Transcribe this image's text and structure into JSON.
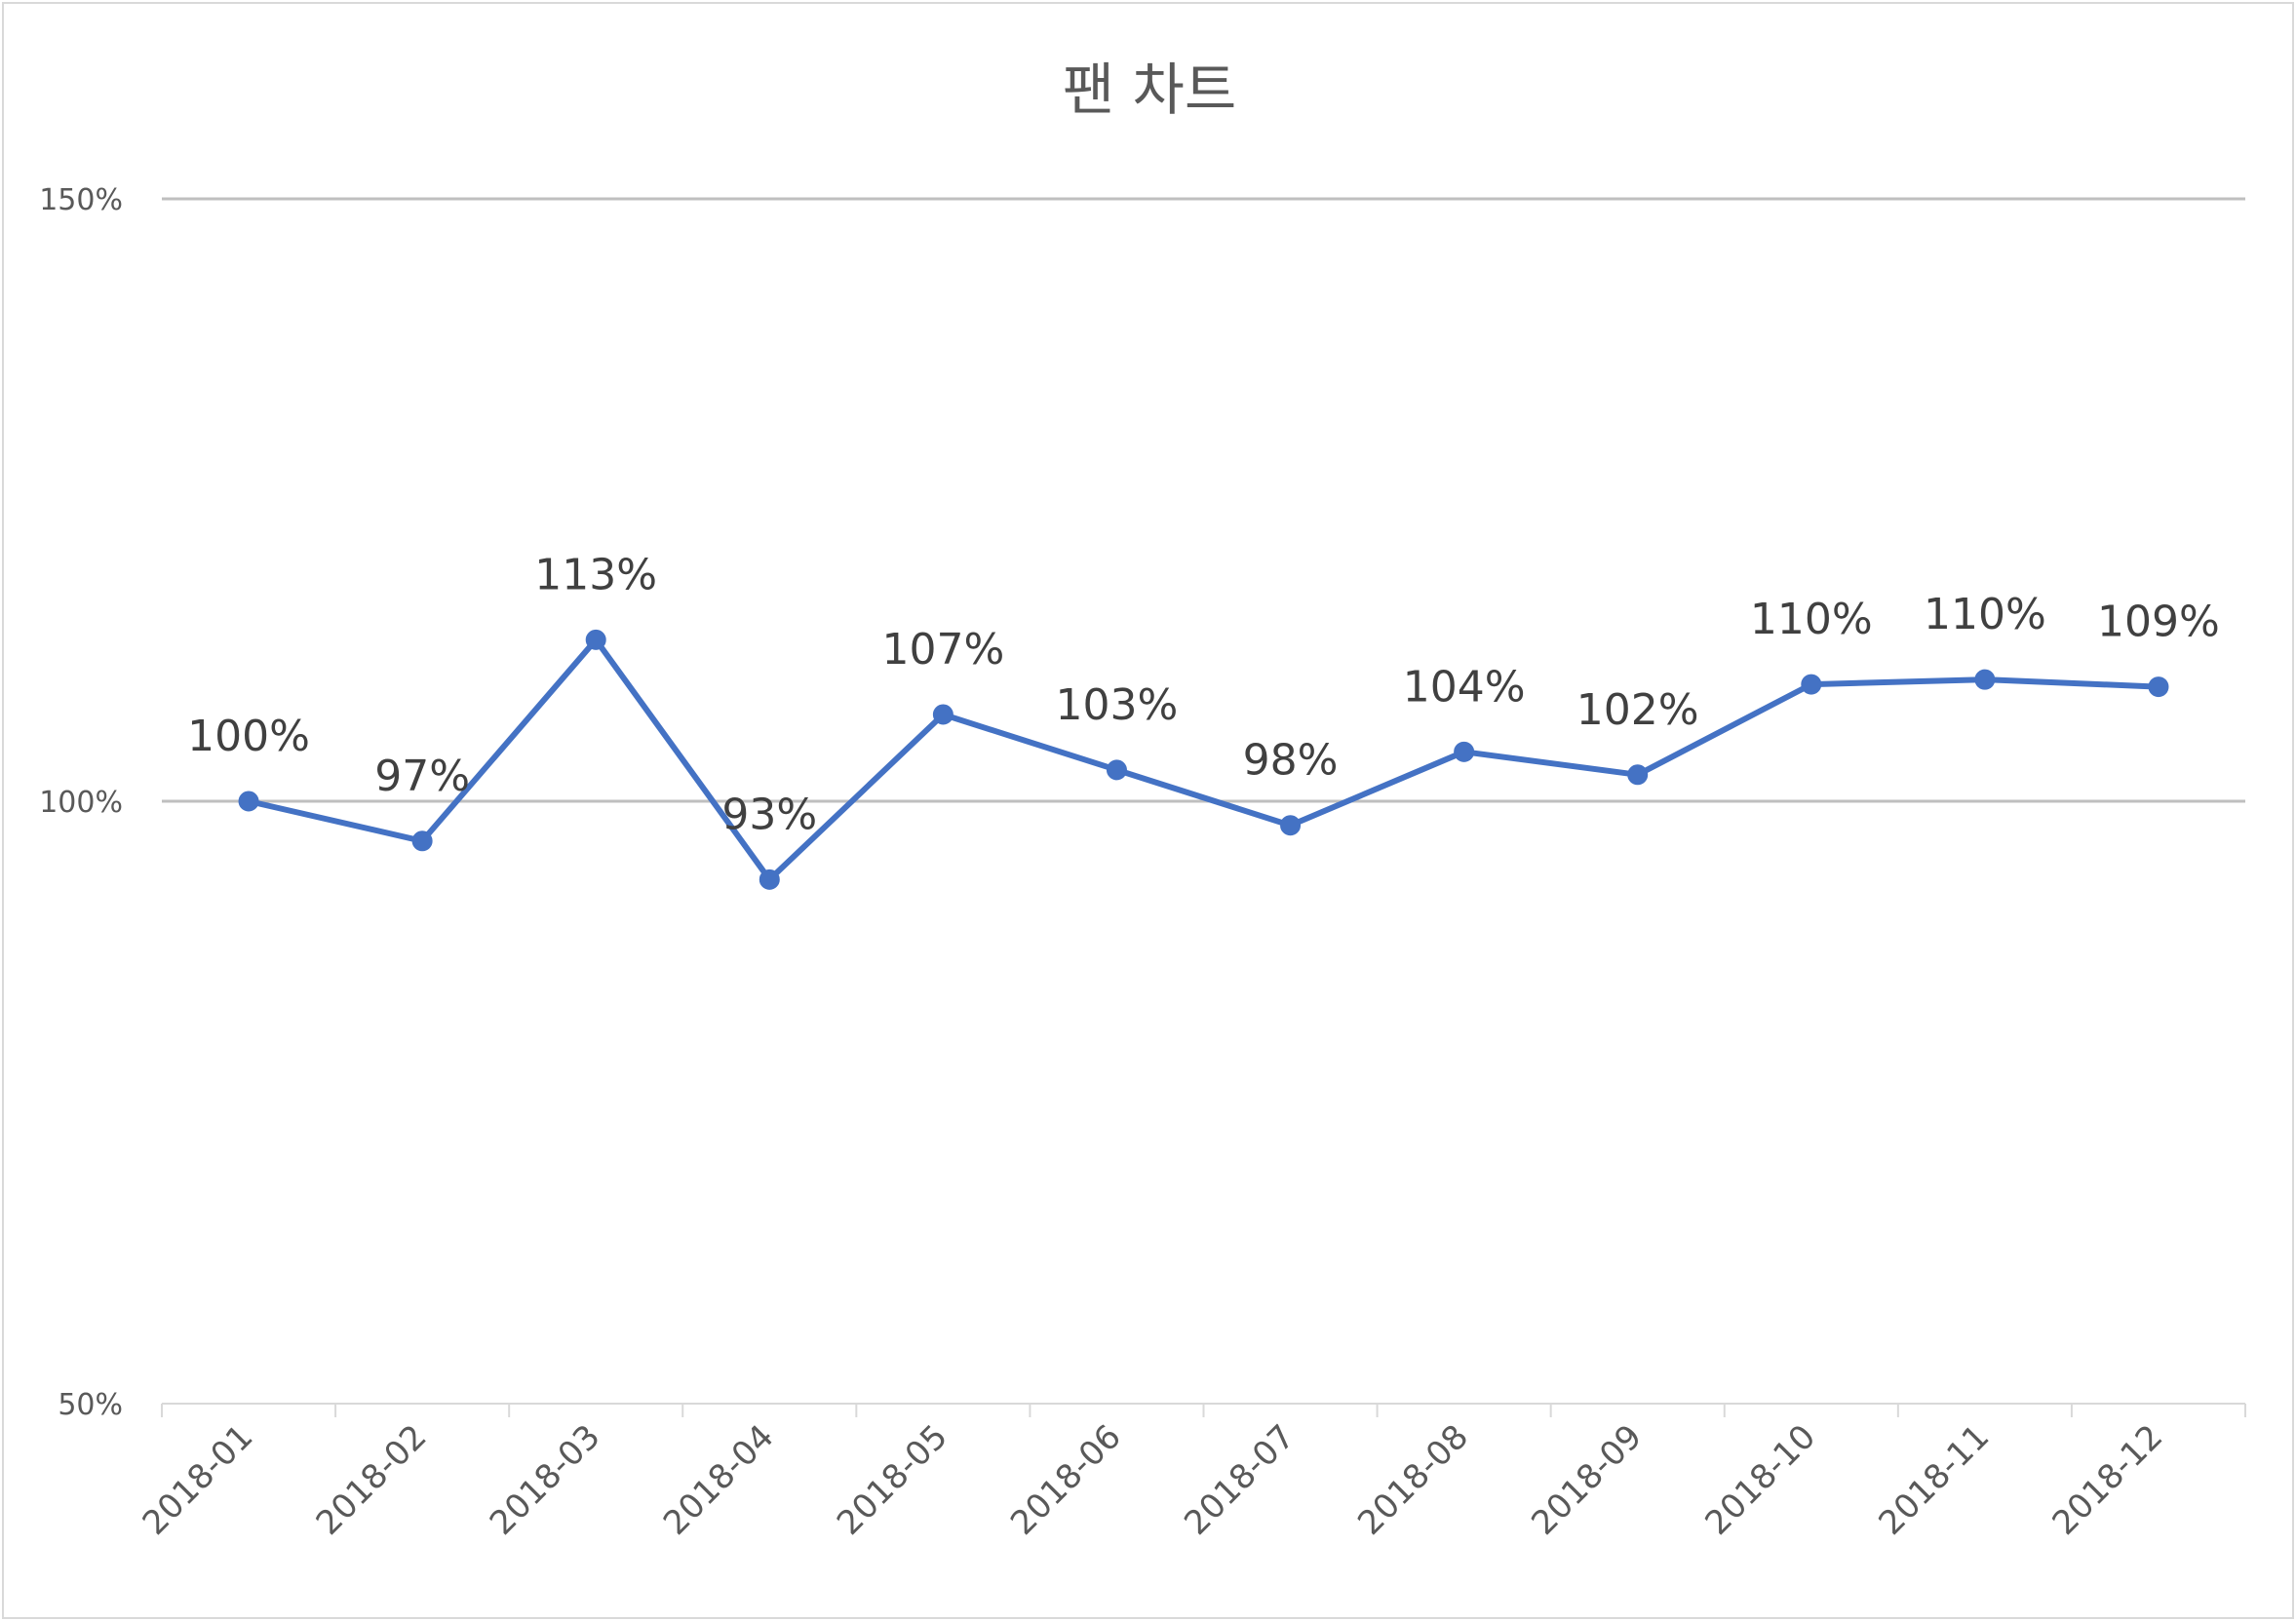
{
  "chart_data": {
    "type": "line",
    "title": "팬 차트",
    "categories": [
      "2018-01",
      "2018-02",
      "2018-03",
      "2018-04",
      "2018-05",
      "2018-06",
      "2018-07",
      "2018-08",
      "2018-09",
      "2018-10",
      "2018-11",
      "2018-12"
    ],
    "series": [
      {
        "values": [
          1.0,
          0.967,
          1.134,
          0.935,
          1.072,
          1.026,
          0.98,
          1.041,
          1.022,
          1.097,
          1.101,
          1.095
        ],
        "data_labels": [
          "100%",
          "97%",
          "113%",
          "93%",
          "107%",
          "103%",
          "98%",
          "104%",
          "102%",
          "110%",
          "110%",
          "109%"
        ],
        "color": "#4472c4",
        "marker": "circle"
      }
    ],
    "ylim": [
      0.5,
      1.5
    ],
    "yticks": [
      0.5,
      1.0,
      1.5
    ],
    "ytick_labels": [
      "50%",
      "100%",
      "150%"
    ],
    "grid": true,
    "legend": "none",
    "xlabel": "",
    "ylabel": ""
  },
  "colors": {
    "line": "#4472c4",
    "grid": "#bfbfbf",
    "axis": "#d9d9d9",
    "text": "#595959"
  }
}
